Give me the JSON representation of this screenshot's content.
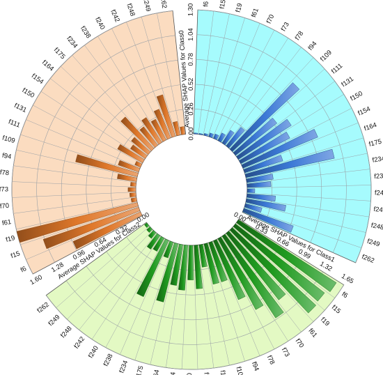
{
  "chart_data": {
    "type": "bar",
    "layout": "circular-sectors",
    "categories": [
      "f6",
      "f15",
      "f19",
      "f61",
      "f70",
      "f73",
      "f78",
      "f94",
      "f109",
      "f111",
      "f131",
      "f150",
      "f154",
      "f164",
      "f175",
      "f234",
      "f238",
      "f240",
      "f242",
      "f248",
      "f249",
      "f262"
    ],
    "sectors": [
      {
        "axis_label": "Average SHAP Values for Class0",
        "ticks": [
          "0.00",
          "0.26",
          "0.52",
          "0.78",
          "1.04",
          "1.30"
        ],
        "range": [
          0,
          1.3
        ],
        "fill_color": "#a6fbfd",
        "bar_color": "#3b78d6",
        "values": [
          0.01,
          0.01,
          0.02,
          0.04,
          0.05,
          0.09,
          0.16,
          0.25,
          0.96,
          0.55,
          0.66,
          0.58,
          0.85,
          0.42,
          0.95,
          0.28,
          0.25,
          0.08,
          0.3,
          0.42,
          0.18,
          0.55
        ]
      },
      {
        "axis_label": "Average SHAP Values for Class1",
        "ticks": [
          "0.00",
          "0.33",
          "0.66",
          "0.99",
          "1.32",
          "1.65"
        ],
        "range": [
          0,
          1.65
        ],
        "fill_color": "#e3f9c3",
        "bar_color": "#1f9a1f",
        "values": [
          1.55,
          1.5,
          1.52,
          1.13,
          1.3,
          1.07,
          0.85,
          0.55,
          0.55,
          0.3,
          0.58,
          0.46,
          0.6,
          0.55,
          0.8,
          0.22,
          0.82,
          0.2,
          0.22,
          0.1,
          0.06,
          0.04
        ]
      },
      {
        "axis_label": "Average SHAP Values for Class2",
        "ticks": [
          "0.00",
          "0.32",
          "0.64",
          "0.96",
          "1.28",
          "1.60"
        ],
        "range": [
          0,
          1.6
        ],
        "fill_color": "#fbdcc0",
        "bar_color": "#e0782a",
        "values": [
          0.95,
          1.3,
          1.6,
          0.07,
          0.08,
          0.1,
          0.07,
          0.25,
          0.82,
          0.28,
          0.08,
          0.37,
          0.23,
          0.28,
          0.55,
          0.3,
          0.38,
          0.3,
          0.4,
          0.56,
          0.18,
          0.1
        ]
      }
    ],
    "legend": "none",
    "grid": true
  }
}
